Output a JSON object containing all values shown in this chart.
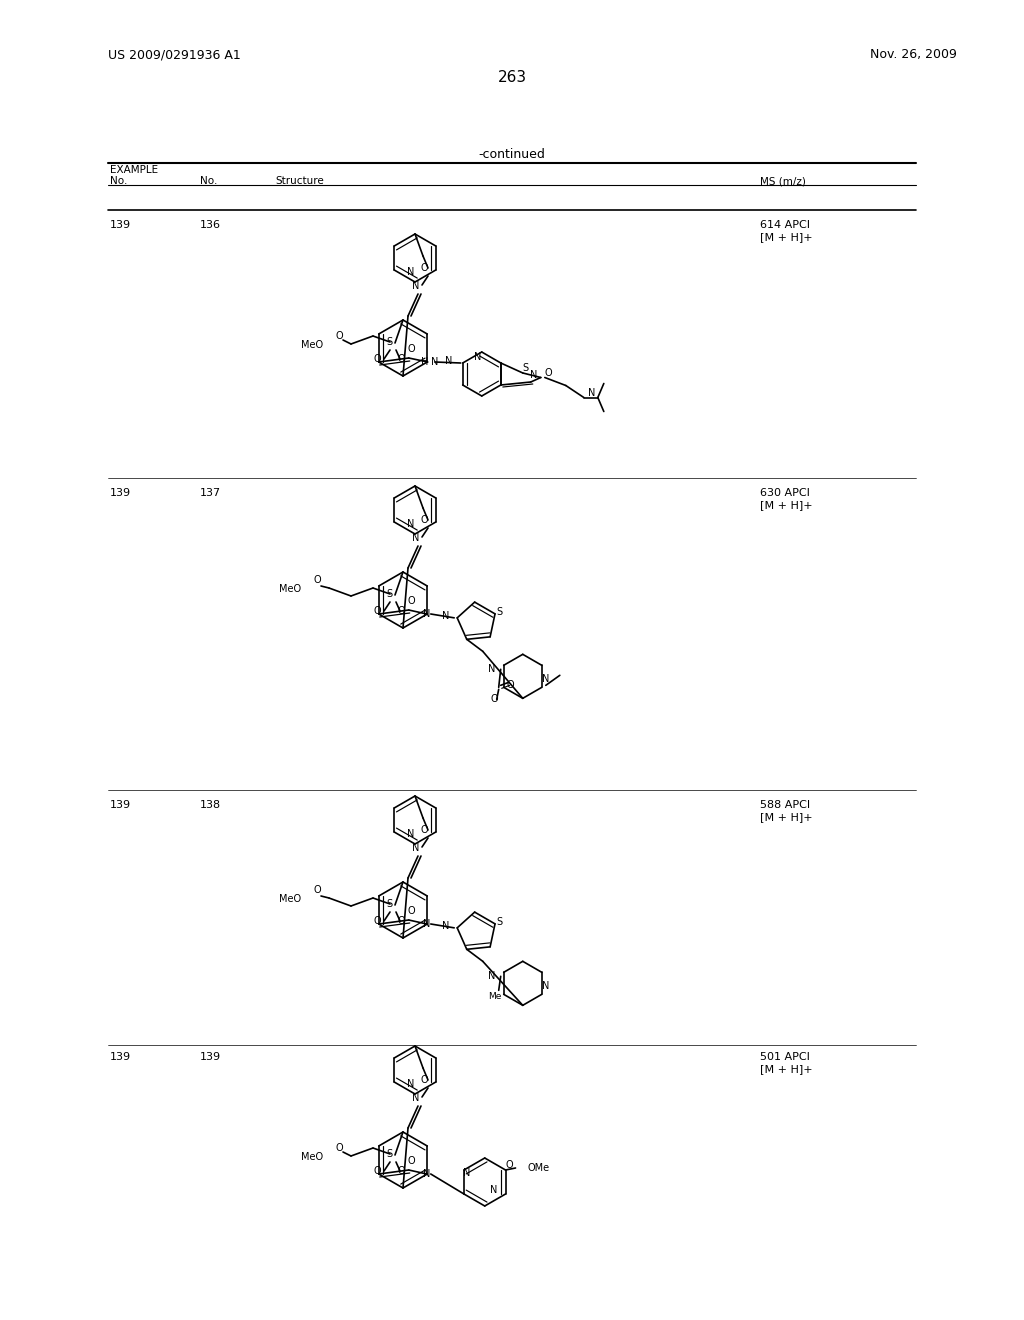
{
  "page_number": "263",
  "patent_number": "US 2009/0291936 A1",
  "date": "Nov. 26, 2009",
  "continued_label": "-continued",
  "background_color": "#ffffff",
  "rows": [
    {
      "ex_no": "139",
      "no": "136",
      "ms": "614 APCI\n[M + H]+"
    },
    {
      "ex_no": "139",
      "no": "137",
      "ms": "630 APCI\n[M + H]+"
    },
    {
      "ex_no": "139",
      "no": "138",
      "ms": "588 APCI\n[M + H]+"
    },
    {
      "ex_no": "139",
      "no": "139",
      "ms": "501 APCI\n[M + H]+"
    }
  ]
}
